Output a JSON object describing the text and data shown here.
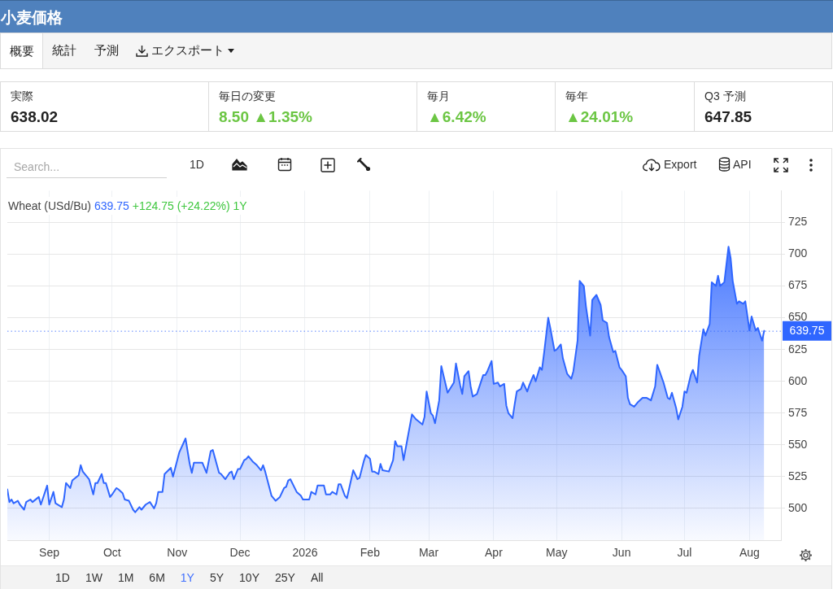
{
  "chart_data": [
    {
      "type": "other",
      "title": "小麦価格",
      "annotations": [
        "概要",
        "統計",
        "予測",
        "エクスポート",
        "実際",
        "638.02",
        "毎日の変更",
        "8.50 ▲1.35%",
        "毎月",
        "▲6.42%",
        "毎年",
        "▲24.01%",
        "Q3 予測",
        "647.85"
      ]
    },
    {
      "type": "area",
      "title": "Wheat (USd/Bu)",
      "annotations": [
        "639.75",
        "+124.75 (+24.22%) 1Y",
        "Search...",
        "1D",
        "Export",
        "API",
        "1D",
        "1W",
        "1M",
        "6M",
        "1Y",
        "5Y",
        "10Y",
        "25Y",
        "All"
      ],
      "x": [
        "2025-08-12",
        "2025-08-13",
        "2025-08-14",
        "2025-08-15",
        "2025-08-17",
        "2025-08-18",
        "2025-08-20",
        "2025-08-21",
        "2025-08-23",
        "2025-08-24",
        "2025-08-27",
        "2025-08-28",
        "2025-08-31",
        "2025-09-01",
        "2025-09-03",
        "2025-09-04",
        "2025-09-07",
        "2025-09-08",
        "2025-09-09",
        "2025-09-11",
        "2025-09-12",
        "2025-09-15",
        "2025-09-16",
        "2025-09-17",
        "2025-09-20",
        "2025-09-22",
        "2025-09-23",
        "2025-09-24",
        "2025-09-26",
        "2025-09-27",
        "2025-09-28",
        "2025-09-30",
        "2025-10-01",
        "2025-10-03",
        "2025-10-04",
        "2025-10-06",
        "2025-10-07",
        "2025-10-09",
        "2025-10-11",
        "2025-10-12",
        "2025-10-14",
        "2025-10-15",
        "2025-10-17",
        "2025-10-19",
        "2025-10-21",
        "2025-10-22",
        "2025-10-23",
        "2025-10-25",
        "2025-10-26",
        "2025-10-29",
        "2025-10-30",
        "2025-11-02",
        "2025-11-05",
        "2025-11-07",
        "2025-11-08",
        "2025-11-09",
        "2025-11-13",
        "2025-11-15",
        "2025-11-17",
        "2025-11-18",
        "2025-11-21",
        "2025-11-22",
        "2025-11-24",
        "2025-11-26",
        "2025-11-27",
        "2025-11-28",
        "2025-11-30",
        "2025-12-01",
        "2025-12-03",
        "2025-12-04",
        "2025-12-05",
        "2025-12-07",
        "2025-12-09",
        "2025-12-11",
        "2025-12-12",
        "2025-12-13",
        "2025-12-16",
        "2025-12-18",
        "2025-12-20",
        "2025-12-22",
        "2025-12-23",
        "2025-12-24",
        "2025-12-25",
        "2025-12-28",
        "2025-12-30",
        "2025-12-31",
        "2026-01-03",
        "2026-01-04",
        "2026-01-06",
        "2026-01-07",
        "2026-01-10",
        "2026-01-11",
        "2026-01-13",
        "2026-01-14",
        "2026-01-16",
        "2026-01-17",
        "2026-01-18",
        "2026-01-20",
        "2026-01-21",
        "2026-01-24",
        "2026-01-26",
        "2026-01-27",
        "2026-01-29",
        "2026-01-30",
        "2026-02-01",
        "2026-02-02",
        "2026-02-03",
        "2026-02-05",
        "2026-02-06",
        "2026-02-07",
        "2026-02-10",
        "2026-02-12",
        "2026-02-13",
        "2026-02-14",
        "2026-02-16",
        "2026-02-17",
        "2026-02-18",
        "2026-02-21",
        "2026-02-23",
        "2026-02-26",
        "2026-02-27",
        "2026-02-28",
        "2026-03-02",
        "2026-03-03",
        "2026-03-04",
        "2026-03-06",
        "2026-03-07",
        "2026-03-09",
        "2026-03-10",
        "2026-03-13",
        "2026-03-14",
        "2026-03-16",
        "2026-03-17",
        "2026-03-18",
        "2026-03-20",
        "2026-03-21",
        "2026-03-22",
        "2026-03-24",
        "2026-03-27",
        "2026-03-28",
        "2026-03-29",
        "2026-03-31",
        "2026-04-01",
        "2026-04-03",
        "2026-04-04",
        "2026-04-06",
        "2026-04-07",
        "2026-04-08",
        "2026-04-10",
        "2026-04-11",
        "2026-04-12",
        "2026-04-14",
        "2026-04-15",
        "2026-04-17",
        "2026-04-18",
        "2026-04-20",
        "2026-04-21",
        "2026-04-23",
        "2026-04-24",
        "2026-04-25",
        "2026-04-27",
        "2026-04-28",
        "2026-04-30",
        "2026-05-01",
        "2026-05-03",
        "2026-05-04",
        "2026-05-06",
        "2026-05-08",
        "2026-05-09",
        "2026-05-11",
        "2026-05-12",
        "2026-05-14",
        "2026-05-15",
        "2026-05-17",
        "2026-05-18",
        "2026-05-20",
        "2026-05-22",
        "2026-05-23",
        "2026-05-25",
        "2026-05-26",
        "2026-05-28",
        "2026-05-29",
        "2026-05-31",
        "2026-06-01",
        "2026-06-03",
        "2026-06-04",
        "2026-06-05",
        "2026-06-07",
        "2026-06-09",
        "2026-06-11",
        "2026-06-13",
        "2026-06-15",
        "2026-06-17",
        "2026-06-18",
        "2026-06-21",
        "2026-06-23",
        "2026-06-24",
        "2026-06-25",
        "2026-06-27",
        "2026-06-28",
        "2026-06-30",
        "2026-07-01",
        "2026-07-02",
        "2026-07-04",
        "2026-07-05",
        "2026-07-07",
        "2026-07-08",
        "2026-07-10",
        "2026-07-11",
        "2026-07-13",
        "2026-07-14",
        "2026-07-16",
        "2026-07-17",
        "2026-07-18",
        "2026-07-20",
        "2026-07-22",
        "2026-07-23",
        "2026-07-24",
        "2026-07-26",
        "2026-07-27",
        "2026-07-29",
        "2026-07-30",
        "2026-08-01",
        "2026-08-02",
        "2026-08-04",
        "2026-08-05",
        "2026-08-07",
        "2026-08-08"
      ],
      "values": [
        515,
        505,
        507,
        504,
        506,
        503,
        499,
        505,
        507,
        505,
        509,
        503,
        518,
        503,
        513,
        504,
        501,
        507,
        520,
        516,
        522,
        526,
        534,
        529,
        523,
        511,
        520,
        520,
        527,
        520,
        520,
        509,
        511,
        516,
        515,
        512,
        507,
        506,
        499,
        497,
        501,
        499,
        503,
        505,
        500,
        504,
        513,
        513,
        527,
        532,
        525,
        544,
        555,
        535,
        528,
        536,
        536,
        528,
        545,
        546,
        528,
        527,
        523,
        528,
        529,
        523,
        531,
        531,
        538,
        539,
        541,
        537,
        534,
        530,
        534,
        529,
        510,
        506,
        509,
        516,
        517,
        522,
        523,
        513,
        510,
        507,
        507,
        513,
        511,
        518,
        518,
        511,
        511,
        513,
        511,
        519,
        519,
        510,
        508,
        530,
        523,
        524,
        537,
        542,
        539,
        529,
        529,
        527,
        535,
        530,
        529,
        538,
        553,
        549,
        549,
        538,
        547,
        574,
        570,
        566,
        572,
        592,
        575,
        573,
        567,
        585,
        612,
        598,
        591,
        599,
        614,
        597,
        590,
        604,
        608,
        596,
        588,
        590,
        605,
        605,
        608,
        616,
        598,
        599,
        596,
        598,
        581,
        575,
        571,
        582,
        592,
        594,
        599,
        592,
        597,
        605,
        600,
        611,
        609,
        622,
        650,
        642,
        624,
        625,
        629,
        618,
        606,
        602,
        608,
        632,
        679,
        675,
        659,
        636,
        664,
        668,
        660,
        648,
        646,
        635,
        623,
        624,
        611,
        609,
        604,
        587,
        582,
        580,
        584,
        587,
        587,
        585,
        596,
        613,
        599,
        587,
        586,
        591,
        579,
        570,
        580,
        592,
        591,
        605,
        609,
        599,
        620,
        641,
        636,
        645,
        678,
        675,
        683,
        675,
        678,
        706,
        697,
        679,
        661,
        663,
        661,
        663,
        640,
        651,
        640,
        642,
        632,
        639.75
      ],
      "color": "#2f66ff",
      "xlim": [
        "2025-08-12",
        "2026-08-16"
      ],
      "xticks": [
        {
          "value": "2025-09-01",
          "label": "Sep"
        },
        {
          "value": "2025-10-01",
          "label": "Oct"
        },
        {
          "value": "2025-11-01",
          "label": "Nov"
        },
        {
          "value": "2025-12-01",
          "label": "Dec"
        },
        {
          "value": "2026-01-01",
          "label": "2026"
        },
        {
          "value": "2026-02-01",
          "label": "Feb"
        },
        {
          "value": "2026-03-01",
          "label": "Mar"
        },
        {
          "value": "2026-04-01",
          "label": "Apr"
        },
        {
          "value": "2026-05-01",
          "label": "May"
        },
        {
          "value": "2026-06-01",
          "label": "Jun"
        },
        {
          "value": "2026-07-01",
          "label": "Jul"
        },
        {
          "value": "2026-08-01",
          "label": "Aug"
        }
      ],
      "ylim": [
        475,
        750
      ],
      "yticks": [
        500,
        525,
        550,
        575,
        600,
        625,
        650,
        675,
        700,
        725
      ],
      "ref_lines": [
        {
          "axis": "y",
          "value": 639.75,
          "label": "639.75",
          "color": "#2f66ff",
          "line_style": "dotted"
        }
      ],
      "grid": true,
      "legend": false,
      "marker": "none",
      "line_style": "solid"
    }
  ]
}
